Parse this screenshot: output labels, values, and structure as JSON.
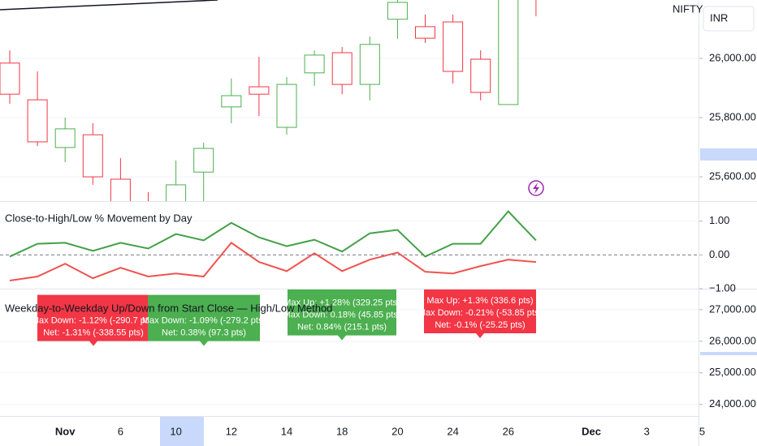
{
  "chart_data": [
    {
      "type": "candlestick",
      "symbol": "NIFTY",
      "currency": "INR",
      "categories": [
        null,
        null,
        "Nov",
        null,
        "6",
        null,
        "10",
        null,
        "12",
        null,
        "14",
        null,
        "18",
        null,
        "20",
        null,
        "24",
        null,
        "26",
        null,
        null,
        "Dec",
        null,
        "3",
        null,
        "5"
      ],
      "open": [
        25984,
        25860,
        25699,
        25742,
        25592,
        25510,
        25490,
        25616,
        25836,
        25904,
        25767,
        25951,
        26019,
        25912,
        26132,
        26107,
        26123,
        25997,
        25844,
        26230,
        null,
        null,
        null,
        null,
        null,
        null
      ],
      "high": [
        26027,
        25956,
        25800,
        25781,
        25663,
        25548,
        25655,
        25715,
        25932,
        26005,
        25937,
        26027,
        26038,
        26074,
        26200,
        26148,
        26148,
        26027,
        26220,
        26250,
        null,
        null,
        null,
        null,
        null,
        null
      ],
      "low": [
        25847,
        25704,
        25649,
        25573,
        25470,
        25440,
        25460,
        25510,
        25781,
        25805,
        25742,
        25907,
        25879,
        25858,
        26066,
        26052,
        25915,
        25858,
        25844,
        26142,
        null,
        null,
        null,
        null,
        null,
        null
      ],
      "close": [
        25879,
        25718,
        25762,
        25600,
        25499,
        25480,
        25573,
        25696,
        25874,
        25879,
        25912,
        26011,
        25912,
        26047,
        26189,
        26068,
        25956,
        25885,
        26200,
        26220,
        null,
        null,
        null,
        null,
        null,
        null
      ],
      "up_color": "#4caf50",
      "down_color": "#f23645",
      "ylim": [
        25518,
        26197
      ],
      "yticks": [
        {
          "value": 26000,
          "label": "26,000.00"
        },
        {
          "value": 25800,
          "label": "25,800.00"
        },
        {
          "value": 25600,
          "label": "25,600.00"
        }
      ],
      "grid": true
    },
    {
      "type": "line",
      "title": "Close-to-High/Low % Movement by Day",
      "series": [
        {
          "color": "#43a047",
          "values": [
            -0.05,
            0.33,
            0.36,
            0.12,
            0.36,
            0.19,
            0.62,
            0.43,
            0.95,
            0.52,
            0.26,
            0.45,
            0.1,
            0.64,
            0.74,
            -0.05,
            0.33,
            0.33,
            1.29,
            0.43
          ]
        },
        {
          "color": "#ef5350",
          "values": [
            -0.76,
            -0.64,
            -0.26,
            -0.69,
            -0.38,
            -0.64,
            -0.55,
            -0.64,
            0.36,
            -0.21,
            -0.48,
            0.05,
            -0.48,
            -0.14,
            0.07,
            -0.5,
            -0.55,
            -0.33,
            -0.14,
            -0.21
          ]
        }
      ],
      "ylim": [
        -1.0,
        1.57
      ],
      "yticks": [
        {
          "value": 1,
          "label": "1.00"
        },
        {
          "value": 0,
          "label": "0.00"
        },
        {
          "value": -1,
          "label": "−1.00"
        }
      ],
      "zero_line": true
    },
    {
      "type": "annotation",
      "title": "Weekday-to-Weekday Up/Down from Start Close — High/Low Method",
      "annotations": [
        {
          "color": "#f23645",
          "value": 25850,
          "lines": [
            "Max Down: -1.12% (-290.7 pts)",
            "Net: -1.31% (-338.55 pts)"
          ]
        },
        {
          "color": "#4caf50",
          "value": 25850,
          "lines": [
            "Max Down: -1.09% (-279.2 pts)",
            "Net: 0.38% (97.3 pts)"
          ]
        },
        {
          "color": "#4caf50",
          "value": 26030,
          "lines": [
            "Max Up: +1.28% (329.25 pts)",
            "Max Down: 0.18% (45.85 pts)",
            "Net: 0.84% (215.1 pts)"
          ]
        },
        {
          "color": "#f23645",
          "value": 26100,
          "lines": [
            "Max Up: +1.3% (336.6 pts)",
            "Max Down: -0.21% (-53.85 pts)",
            "Net: -0.1% (-25.25 pts)"
          ]
        }
      ],
      "ylim": [
        23634,
        27639
      ],
      "yticks": [
        {
          "value": 27000,
          "label": "27,000.00"
        },
        {
          "value": 26000,
          "label": "26,000.00"
        },
        {
          "value": 25000,
          "label": "25,000.00"
        },
        {
          "value": 24000,
          "label": "24,000.00"
        }
      ]
    }
  ]
}
